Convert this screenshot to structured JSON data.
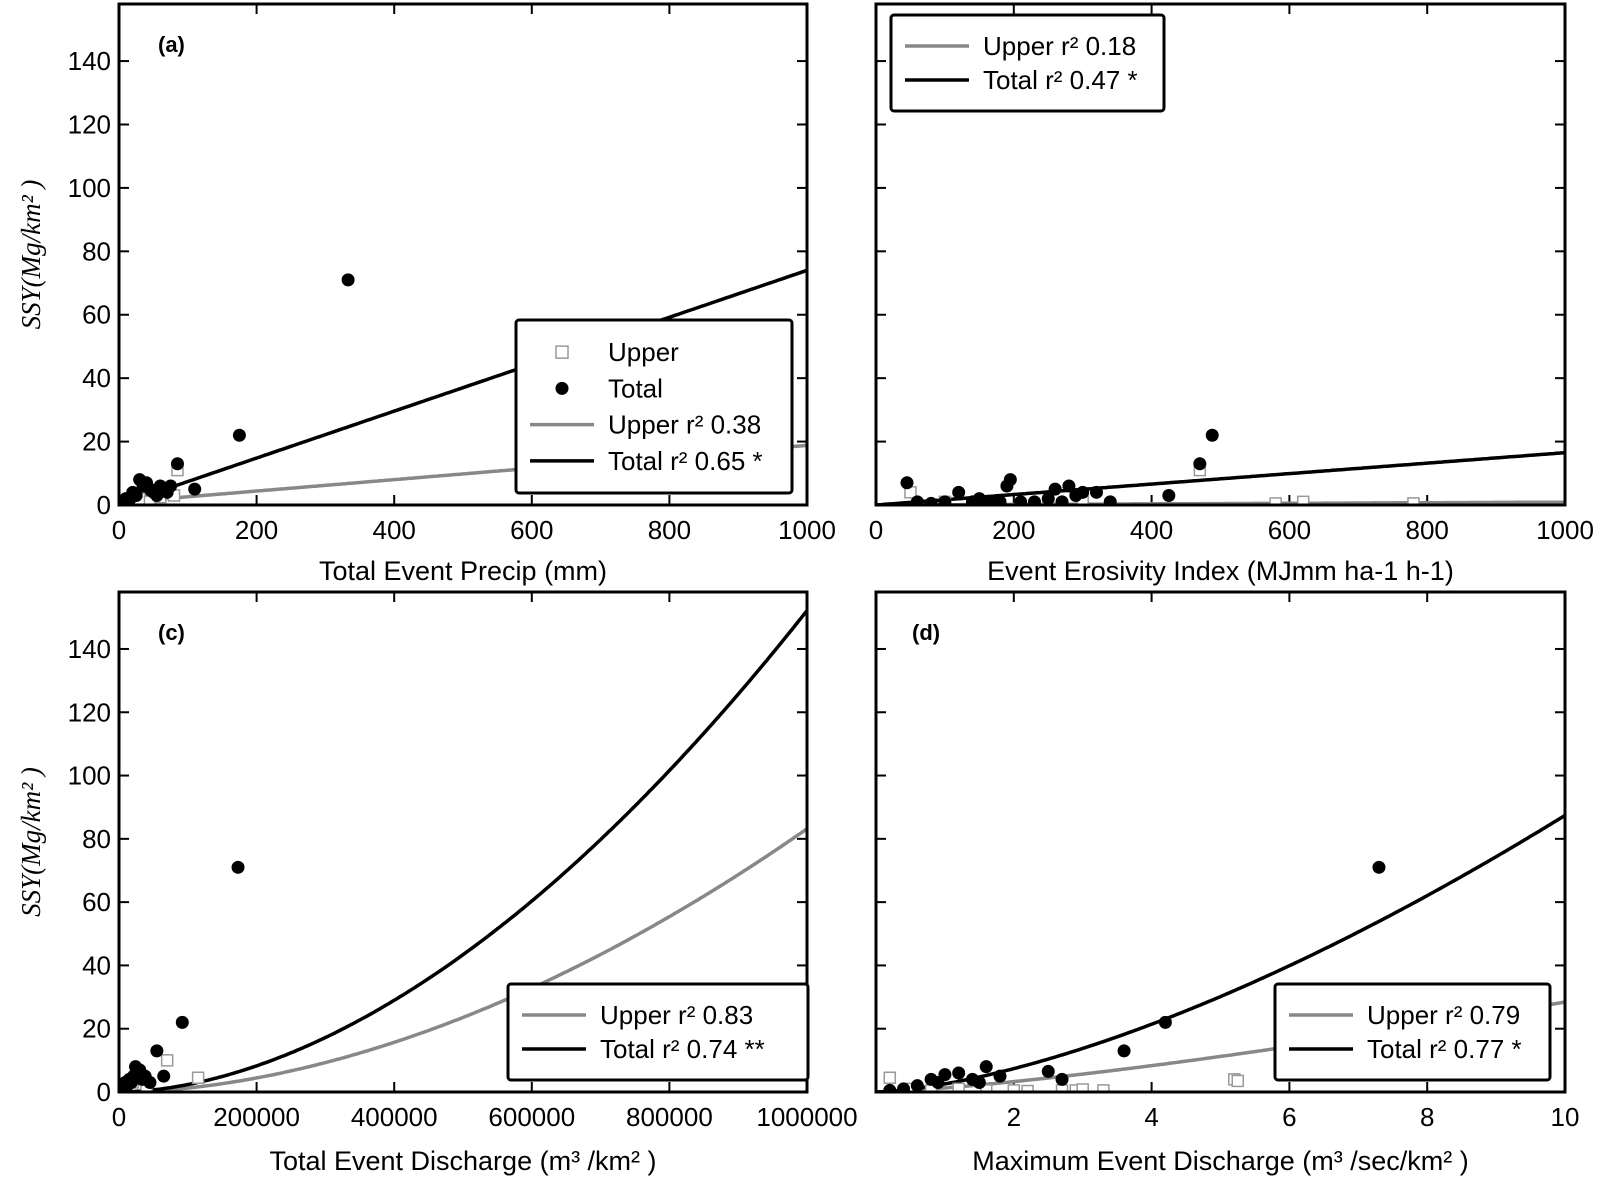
{
  "colors": {
    "upper": "#888888",
    "total": "#000000",
    "upper_marker_edge": "#999999",
    "frame": "#000000"
  },
  "chart_data": [
    {
      "type": "scatter",
      "panel": "(a)",
      "xlabel": "Total Event Precip (mm)",
      "ylabel": "SSY(Mg/km² )",
      "xlim": [
        0,
        1000
      ],
      "ylim": [
        0,
        158
      ],
      "x_ticks": [
        "0",
        "200",
        "400",
        "600",
        "800",
        "1000"
      ],
      "x_tick_values": [
        0,
        200,
        400,
        600,
        800,
        1000
      ],
      "y_ticks": [
        "0",
        "20",
        "40",
        "60",
        "80",
        "100",
        "120",
        "140"
      ],
      "y_tick_values": [
        0,
        20,
        40,
        60,
        80,
        100,
        120,
        140
      ],
      "legend": {
        "placement": "lower-right",
        "entries": [
          {
            "kind": "square",
            "series": "upper",
            "label": "Upper"
          },
          {
            "kind": "dot",
            "series": "total",
            "label": "Total"
          },
          {
            "kind": "line",
            "series": "upper",
            "label": "Upper r² 0.38"
          },
          {
            "kind": "line",
            "series": "total",
            "label": "Total r² 0.65 *"
          }
        ]
      },
      "series": [
        {
          "name": "Upper",
          "kind": "points",
          "marker": "square",
          "x": [
            5,
            12,
            20,
            30,
            45,
            60,
            80,
            85
          ],
          "y": [
            0.5,
            1,
            1.5,
            2,
            1,
            2.5,
            3,
            11
          ]
        },
        {
          "name": "Total",
          "kind": "points",
          "marker": "dot",
          "x": [
            5,
            10,
            15,
            20,
            25,
            30,
            35,
            40,
            45,
            50,
            55,
            60,
            65,
            70,
            75,
            85,
            110,
            175,
            333
          ],
          "y": [
            1,
            2,
            1.5,
            4,
            3,
            8,
            6,
            7,
            5,
            4,
            3,
            6,
            5,
            4,
            6,
            13,
            5,
            22,
            71
          ]
        },
        {
          "name": "Upper r² 0.38",
          "kind": "fit",
          "style": "upper",
          "model": "linear",
          "a": 0.8,
          "b": 0.018
        },
        {
          "name": "Total r² 0.65 *",
          "kind": "fit",
          "style": "total",
          "model": "linear",
          "a": 0,
          "b": 0.074
        }
      ]
    },
    {
      "type": "scatter",
      "panel": "",
      "xlabel": "Event Erosivity Index (MJmm ha-1 h-1)",
      "ylabel": "",
      "xlim": [
        0,
        1000
      ],
      "ylim": [
        0,
        158
      ],
      "x_ticks": [
        "0",
        "200",
        "400",
        "600",
        "800",
        "1000"
      ],
      "x_tick_values": [
        0,
        200,
        400,
        600,
        800,
        1000
      ],
      "y_ticks": [],
      "y_tick_values": [
        0,
        20,
        40,
        60,
        80,
        100,
        120,
        140
      ],
      "legend": {
        "placement": "top-left",
        "entries": [
          {
            "kind": "line",
            "series": "upper",
            "label": "Upper r² 0.18"
          },
          {
            "kind": "line",
            "series": "total",
            "label": "Total r² 0.47 *"
          }
        ]
      },
      "series": [
        {
          "name": "Upper",
          "kind": "points",
          "marker": "square",
          "x": [
            50,
            100,
            150,
            250,
            300,
            470,
            580,
            620,
            780
          ],
          "y": [
            4,
            1,
            1,
            0.5,
            1,
            11,
            0.5,
            1,
            0.5
          ]
        },
        {
          "name": "Total",
          "kind": "points",
          "marker": "dot",
          "x": [
            45,
            60,
            80,
            100,
            120,
            140,
            150,
            160,
            170,
            180,
            190,
            195,
            210,
            230,
            250,
            260,
            270,
            280,
            290,
            300,
            320,
            340,
            425,
            470,
            488
          ],
          "y": [
            7,
            1,
            0.5,
            1,
            4,
            1,
            2,
            1,
            1,
            1,
            6,
            8,
            1,
            1,
            2,
            5,
            1,
            6,
            3,
            4,
            4,
            1,
            3,
            13,
            22
          ]
        },
        {
          "name": "Upper r² 0.18",
          "kind": "fit",
          "style": "upper",
          "model": "linear",
          "a": 0,
          "b": 0.0009
        },
        {
          "name": "Total r² 0.47 *",
          "kind": "fit",
          "style": "total",
          "model": "linear",
          "a": 0,
          "b": 0.0165
        }
      ]
    },
    {
      "type": "scatter",
      "panel": "(c)",
      "xlabel": "Total Event Discharge (m³ /km² )",
      "ylabel": "SSY(Mg/km² )",
      "xlim": [
        0,
        1000000
      ],
      "ylim": [
        0,
        158
      ],
      "x_ticks": [
        "0",
        "200000",
        "400000",
        "600000",
        "800000",
        "1000000"
      ],
      "x_tick_values": [
        0,
        200000,
        400000,
        600000,
        800000,
        1000000
      ],
      "y_ticks": [
        "0",
        "20",
        "40",
        "60",
        "80",
        "100",
        "120",
        "140"
      ],
      "y_tick_values": [
        0,
        20,
        40,
        60,
        80,
        100,
        120,
        140
      ],
      "legend": {
        "placement": "lower-right",
        "entries": [
          {
            "kind": "line",
            "series": "upper",
            "label": "Upper r² 0.83"
          },
          {
            "kind": "line",
            "series": "total",
            "label": "Total r² 0.74 **"
          }
        ]
      },
      "series": [
        {
          "name": "Upper",
          "kind": "points",
          "marker": "square",
          "x": [
            5000,
            10000,
            20000,
            30000,
            40000,
            70000,
            115000
          ],
          "y": [
            1,
            2,
            3,
            4,
            2,
            10,
            4.5
          ]
        },
        {
          "name": "Total",
          "kind": "points",
          "marker": "dot",
          "x": [
            3000,
            6000,
            9000,
            12000,
            15000,
            18000,
            21000,
            24000,
            27000,
            30000,
            34000,
            38000,
            45000,
            55000,
            65000,
            92000,
            173000
          ],
          "y": [
            1,
            2,
            3,
            2,
            4,
            3,
            5,
            8,
            6,
            7,
            4,
            5,
            3,
            13,
            5,
            22,
            71
          ]
        },
        {
          "name": "Upper r² 0.83",
          "kind": "fit",
          "style": "upper",
          "model": "power",
          "a": 1e-09,
          "b": 1.82
        },
        {
          "name": "Total r² 0.74 **",
          "kind": "fit",
          "style": "total",
          "model": "power",
          "a": 2.1e-09,
          "b": 1.81
        }
      ]
    },
    {
      "type": "scatter",
      "panel": "(d)",
      "xlabel": "Maximum Event Discharge (m³ /sec/km² )",
      "ylabel": "",
      "xlim": [
        0,
        10
      ],
      "ylim": [
        0,
        158
      ],
      "x_ticks": [
        "2",
        "4",
        "6",
        "8",
        "10"
      ],
      "x_tick_values": [
        2,
        4,
        6,
        8,
        10
      ],
      "y_ticks": [],
      "y_tick_values": [
        0,
        20,
        40,
        60,
        80,
        100,
        120,
        140
      ],
      "legend": {
        "placement": "lower-right",
        "entries": [
          {
            "kind": "line",
            "series": "upper",
            "label": "Upper r² 0.79"
          },
          {
            "kind": "line",
            "series": "total",
            "label": "Total r² 0.77 *"
          }
        ]
      },
      "series": [
        {
          "name": "Upper",
          "kind": "points",
          "marker": "square",
          "x": [
            0.2,
            0.5,
            0.8,
            1.2,
            1.6,
            2.0,
            2.2,
            2.7,
            2.9,
            3.0,
            3.3,
            5.2,
            5.25
          ],
          "y": [
            4.5,
            1,
            0.5,
            1,
            0.5,
            0.5,
            0.3,
            0.5,
            0.5,
            0.8,
            0.5,
            4,
            3.5
          ]
        },
        {
          "name": "Total",
          "kind": "points",
          "marker": "dot",
          "x": [
            0.2,
            0.4,
            0.6,
            0.8,
            0.9,
            1.0,
            1.2,
            1.4,
            1.5,
            1.6,
            1.8,
            2.5,
            2.7,
            3.6,
            4.2,
            7.3
          ],
          "y": [
            0.5,
            1,
            2,
            4,
            3,
            5.5,
            6,
            4,
            3,
            8,
            5,
            6.5,
            4,
            13,
            22,
            71
          ]
        },
        {
          "name": "Upper r² 0.79",
          "kind": "fit",
          "style": "upper",
          "model": "power",
          "a": 1.3,
          "b": 1.34
        },
        {
          "name": "Total r² 0.77 *",
          "kind": "fit",
          "style": "total",
          "model": "power",
          "a": 2.55,
          "b": 1.535
        }
      ]
    }
  ]
}
